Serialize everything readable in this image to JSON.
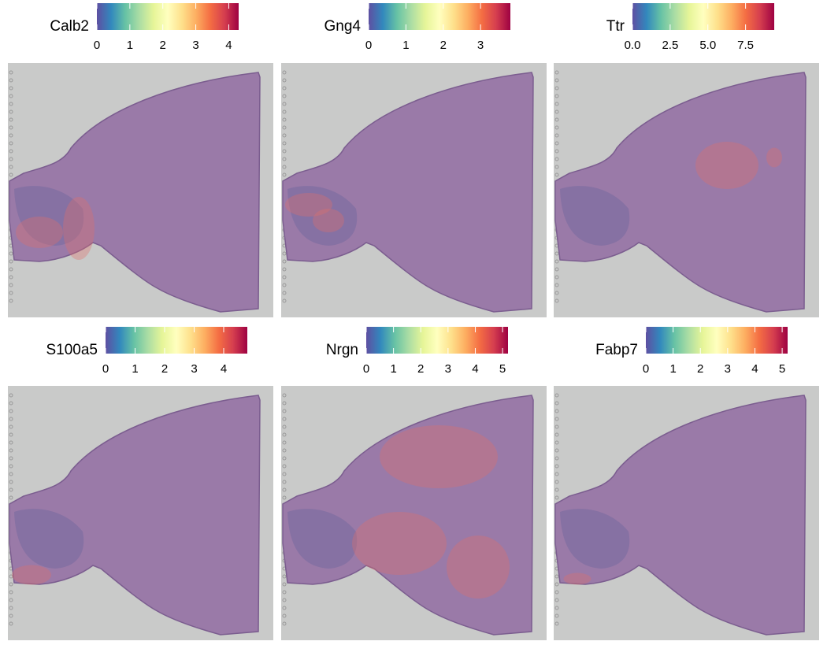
{
  "chart_data": [
    {
      "type": "spatial",
      "title": "Calb2",
      "clim": [
        0,
        4.3
      ],
      "cticks": [
        0,
        1,
        2,
        3,
        4
      ],
      "colors": [
        "#5e4fa2",
        "#3288bd",
        "#66c2a5",
        "#abdda4",
        "#e6f598",
        "#ffffbf",
        "#fee08b",
        "#fdae61",
        "#f46d43",
        "#d53e4f",
        "#9e0142"
      ]
    },
    {
      "type": "spatial",
      "title": "Gng4",
      "clim": [
        0,
        3.8
      ],
      "cticks": [
        0,
        1,
        2,
        3
      ],
      "colors": [
        "#5e4fa2",
        "#3288bd",
        "#66c2a5",
        "#abdda4",
        "#e6f598",
        "#ffffbf",
        "#fee08b",
        "#fdae61",
        "#f46d43",
        "#d53e4f",
        "#9e0142"
      ]
    },
    {
      "type": "spatial",
      "title": "Ttr",
      "clim": [
        0,
        9.4
      ],
      "cticks": [
        {
          "value": 0,
          "label": "0.0"
        },
        {
          "value": 2.5,
          "label": "2.5"
        },
        {
          "value": 5,
          "label": "5.0"
        },
        {
          "value": 7.5,
          "label": "7.5"
        }
      ],
      "colors": [
        "#5e4fa2",
        "#3288bd",
        "#66c2a5",
        "#abdda4",
        "#e6f598",
        "#ffffbf",
        "#fee08b",
        "#fdae61",
        "#f46d43",
        "#d53e4f",
        "#9e0142"
      ]
    },
    {
      "type": "spatial",
      "title": "S100a5",
      "clim": [
        0,
        4.8
      ],
      "cticks": [
        0,
        1,
        2,
        3,
        4
      ],
      "colors": [
        "#5e4fa2",
        "#3288bd",
        "#66c2a5",
        "#abdda4",
        "#e6f598",
        "#ffffbf",
        "#fee08b",
        "#fdae61",
        "#f46d43",
        "#d53e4f",
        "#9e0142"
      ]
    },
    {
      "type": "spatial",
      "title": "Nrgn",
      "clim": [
        0,
        5.2
      ],
      "cticks": [
        0,
        1,
        2,
        3,
        4,
        5
      ],
      "colors": [
        "#5e4fa2",
        "#3288bd",
        "#66c2a5",
        "#abdda4",
        "#e6f598",
        "#ffffbf",
        "#fee08b",
        "#fdae61",
        "#f46d43",
        "#d53e4f",
        "#9e0142"
      ]
    },
    {
      "type": "spatial",
      "title": "Fabp7",
      "clim": [
        0,
        5.2
      ],
      "cticks": [
        0,
        1,
        2,
        3,
        4,
        5
      ],
      "colors": [
        "#5e4fa2",
        "#3288bd",
        "#66c2a5",
        "#abdda4",
        "#e6f598",
        "#ffffbf",
        "#fee08b",
        "#fdae61",
        "#f46d43",
        "#d53e4f",
        "#9e0142"
      ]
    }
  ]
}
